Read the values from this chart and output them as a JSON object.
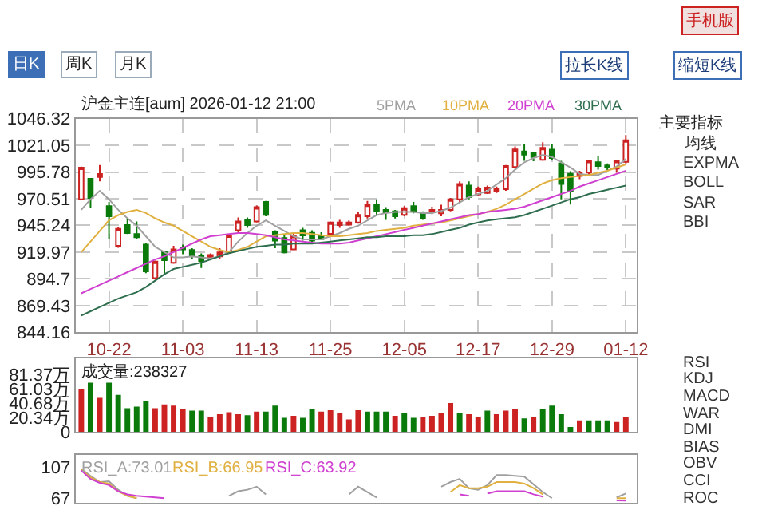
{
  "chart_data": [
    {
      "type": "candlestick",
      "title": "沪金主连[aum] 2026-01-12 21:00",
      "categories": [
        null,
        null,
        null,
        "10-22",
        null,
        null,
        null,
        null,
        null,
        null,
        null,
        "11-03",
        null,
        null,
        null,
        null,
        null,
        null,
        null,
        "11-13",
        null,
        null,
        null,
        null,
        null,
        null,
        null,
        "11-25",
        null,
        null,
        null,
        null,
        null,
        null,
        null,
        "12-05",
        null,
        null,
        null,
        null,
        null,
        null,
        null,
        "12-17",
        null,
        null,
        null,
        null,
        null,
        null,
        null,
        "12-29",
        null,
        null,
        null,
        null,
        null,
        null,
        null,
        "01-12"
      ],
      "ohlc": [
        [
          970,
          1001,
          969,
          1000
        ],
        [
          989.3,
          990,
          961.6,
          971.3
        ],
        [
          991,
          1002.5,
          987,
          994
        ],
        [
          963.5,
          967.4,
          932,
          953.8
        ],
        [
          926,
          944,
          924,
          942
        ],
        [
          945.5,
          951.8,
          937,
          938
        ],
        [
          937,
          948.9,
          932,
          934
        ],
        [
          927,
          928.4,
          900,
          901.7
        ],
        [
          895.3,
          912,
          894,
          911
        ],
        [
          920,
          920,
          899.2,
          912.4
        ],
        [
          909.9,
          926,
          909,
          922.6
        ],
        [
          924,
          927,
          918,
          922.5
        ],
        [
          922,
          923.6,
          913.8,
          916.3
        ],
        [
          916.3,
          918.7,
          905,
          911.4
        ],
        [
          915.3,
          918.7,
          913.8,
          917.3
        ],
        [
          916,
          923.6,
          913.8,
          919.7
        ],
        [
          919.7,
          937.2,
          918.7,
          935.8
        ],
        [
          940.6,
          952.8,
          937.2,
          948.9
        ],
        [
          950.4,
          952.8,
          943,
          945.5
        ],
        [
          948.9,
          964,
          948,
          962.6
        ],
        [
          967.4,
          968.4,
          953.8,
          955.2
        ],
        [
          939.2,
          940.6,
          923.6,
          930.9
        ],
        [
          933.3,
          935.8,
          918.7,
          919.7
        ],
        [
          922.6,
          937.2,
          922,
          935.3
        ],
        [
          940.6,
          943,
          930.9,
          935.8
        ],
        [
          938.2,
          940.6,
          929.4,
          930.9
        ],
        [
          935.3,
          938.7,
          932.3,
          932.3
        ],
        [
          937.2,
          949,
          935.8,
          948
        ],
        [
          945.5,
          950.4,
          943,
          948
        ],
        [
          946,
          950,
          945,
          948
        ],
        [
          948,
          957.6,
          946.9,
          955.2
        ],
        [
          953.8,
          968.4,
          951.8,
          965
        ],
        [
          965,
          970,
          955,
          958.6
        ],
        [
          960,
          962.6,
          950.4,
          957.6
        ],
        [
          958.6,
          960,
          951.8,
          953.8
        ],
        [
          955.2,
          963.5,
          953.8,
          961.6
        ],
        [
          963.5,
          967.4,
          956.7,
          958.6
        ],
        [
          957.6,
          958.6,
          950.4,
          951.8
        ],
        [
          957.6,
          963,
          956,
          960
        ],
        [
          956.7,
          964.9,
          953.8,
          960
        ],
        [
          960,
          971.3,
          958.6,
          969.9
        ],
        [
          969.9,
          986.9,
          967.4,
          984.5
        ],
        [
          983,
          986.9,
          969.9,
          972.3
        ],
        [
          974.7,
          982,
          973.3,
          979.6
        ],
        [
          976,
          983,
          975,
          981
        ],
        [
          978,
          982,
          976,
          979.6
        ],
        [
          979.6,
          1002.5,
          978,
          1001.5
        ],
        [
          1000.5,
          1020,
          999,
          1017.1
        ],
        [
          1015.2,
          1022,
          1006.4,
          1012.2
        ],
        [
          1014,
          1015,
          1006,
          1010
        ],
        [
          1007.4,
          1024,
          1006.4,
          1018.6
        ],
        [
          1017,
          1022,
          1007,
          1009
        ],
        [
          1004,
          1006.4,
          969.9,
          984.5
        ],
        [
          994.2,
          996.6,
          965,
          978.1
        ],
        [
          992,
          997,
          989,
          994.7
        ],
        [
          995.2,
          1007.4,
          992.2,
          1006.4
        ],
        [
          1005,
          1011.3,
          998,
          1001.5
        ],
        [
          1002,
          1004,
          997.6,
          1000.5
        ],
        [
          999.1,
          1007.4,
          995,
          1006.4
        ],
        [
          1005.4,
          1030.8,
          1004,
          1025.9
        ]
      ],
      "series": [
        {
          "type": "line",
          "name": "5PMA",
          "color": "#a0a0a0",
          "values": [
            960,
            970,
            978,
            970,
            960,
            952,
            945,
            935,
            925,
            920,
            915,
            915,
            916,
            915,
            914,
            916,
            920,
            930,
            938,
            945,
            950,
            945,
            940,
            935,
            932,
            932,
            932,
            935,
            938,
            942,
            945,
            950,
            955,
            957,
            958,
            958,
            958,
            957,
            957,
            959,
            962,
            967,
            972,
            975,
            978,
            984,
            990,
            998,
            1005,
            1009,
            1012,
            1010,
            1005,
            1000,
            994,
            993,
            993,
            997,
            1001,
            1008
          ]
        },
        {
          "type": "line",
          "name": "10PMA",
          "color": "#e0b040",
          "values": [
            920,
            930,
            940,
            950,
            955,
            958,
            960,
            957,
            952,
            948,
            945,
            940,
            935,
            930,
            925,
            922,
            920,
            922,
            925,
            930,
            935,
            936,
            937,
            938,
            938,
            937,
            936,
            935,
            935,
            936,
            937,
            938,
            940,
            941,
            942,
            943,
            945,
            946,
            947,
            948,
            950,
            952,
            954,
            956,
            958,
            961,
            965,
            970,
            975,
            980,
            985,
            988,
            990,
            991,
            992,
            993,
            995,
            997,
            1000,
            1003
          ]
        },
        {
          "type": "line",
          "name": "20PMA",
          "color": "#d040d0",
          "values": [
            881,
            885,
            889,
            893,
            897,
            901,
            905,
            909,
            913,
            916,
            920,
            924,
            928,
            932,
            935,
            936,
            937,
            938,
            938,
            937,
            936,
            934,
            932,
            931,
            930,
            929,
            928,
            928,
            928,
            929,
            931,
            933,
            935,
            937,
            939,
            941,
            943,
            945,
            947,
            949,
            951,
            953,
            955,
            956,
            958,
            959,
            960,
            961,
            963,
            966,
            969,
            972,
            975,
            978,
            982,
            985,
            988,
            991,
            994,
            997
          ]
        },
        {
          "type": "line",
          "name": "30PMA",
          "color": "#2e6e4e",
          "values": [
            860,
            864,
            868,
            872,
            876,
            879,
            882,
            887,
            893,
            899,
            904,
            906,
            908,
            910,
            913,
            916,
            919,
            921,
            923,
            925,
            926,
            927,
            927,
            928,
            928,
            928,
            929,
            930,
            931,
            932,
            933,
            934,
            934,
            935,
            935,
            935,
            936,
            936,
            937,
            939,
            941,
            943,
            946,
            948,
            950,
            951,
            952,
            953,
            955,
            958,
            961,
            964,
            967,
            970,
            972,
            975,
            977,
            979,
            981,
            983
          ]
        }
      ],
      "ylim": [
        844.16,
        1046.32
      ],
      "yticks": [
        844.16,
        869.43,
        894.7,
        919.97,
        945.24,
        970.51,
        995.78,
        1021.05,
        1046.32
      ],
      "grid": true,
      "marker": "none"
    },
    {
      "type": "bar",
      "title": "成交量:238327",
      "categories": [
        null,
        null,
        null,
        null,
        null,
        null,
        null,
        null,
        null,
        null,
        null,
        null,
        null,
        null,
        null,
        null,
        null,
        null,
        null,
        null,
        null,
        null,
        null,
        null,
        null,
        null,
        null,
        null,
        null,
        null,
        null,
        null,
        null,
        null,
        null,
        null,
        null,
        null,
        null,
        null,
        null,
        null,
        null,
        null,
        null,
        null,
        null,
        null,
        null,
        null,
        null,
        null,
        null,
        null,
        null,
        null,
        null,
        null,
        null,
        null
      ],
      "values": [
        61.2,
        69.8,
        48.2,
        69.8,
        52.6,
        33.8,
        36,
        43.9,
        33.8,
        38.9,
        37.4,
        32.4,
        30.2,
        30.2,
        21.6,
        25.2,
        28,
        25.2,
        23.8,
        28.8,
        28.8,
        37.4,
        20.2,
        23,
        20.2,
        32.4,
        28.8,
        31,
        26.6,
        18,
        31,
        28.8,
        28.8,
        28.8,
        23,
        26.6,
        20.2,
        21.6,
        23,
        26.6,
        41,
        26.6,
        25.2,
        21.6,
        30.2,
        25.2,
        30.2,
        32.4,
        19.4,
        21.6,
        32.4,
        37.4,
        25.2,
        7.2,
        16.6,
        16.6,
        16.6,
        16.6,
        14.4,
        21.6
      ],
      "colors": [
        "#cc2222",
        "#0a7a0a",
        "#cc2222",
        "#0a7a0a",
        "#0a7a0a",
        "#0a7a0a",
        "#0a7a0a",
        "#0a7a0a",
        "#cc2222",
        "#cc2222",
        "#cc2222",
        "#cc2222",
        "#0a7a0a",
        "#0a7a0a",
        "#cc2222",
        "#cc2222",
        "#cc2222",
        "#cc2222",
        "#0a7a0a",
        "#cc2222",
        "#0a7a0a",
        "#0a7a0a",
        "#0a7a0a",
        "#cc2222",
        "#0a7a0a",
        "#0a7a0a",
        "#cc2222",
        "#cc2222",
        "#cc2222",
        "#cc2222",
        "#cc2222",
        "#0a7a0a",
        "#0a7a0a",
        "#0a7a0a",
        "#cc2222",
        "#0a7a0a",
        "#0a7a0a",
        "#cc2222",
        "#cc2222",
        "#cc2222",
        "#cc2222",
        "#0a7a0a",
        "#cc2222",
        "#cc2222",
        "#0a7a0a",
        "#cc2222",
        "#cc2222",
        "#cc2222",
        "#0a7a0a",
        "#cc2222",
        "#0a7a0a",
        "#0a7a0a",
        "#0a7a0a",
        "#0a7a0a",
        "#cc2222",
        "#0a7a0a",
        "#0a7a0a",
        "#0a7a0a",
        "#cc2222",
        "#cc2222"
      ],
      "ylim": [
        0,
        104
      ],
      "yticks": [
        0,
        {
          "value": 20.34,
          "label": "20.34万"
        },
        {
          "value": 40.68,
          "label": "40.68万"
        },
        {
          "value": 61.03,
          "label": "61.03万"
        },
        {
          "value": 81.37,
          "label": "81.37万"
        }
      ],
      "grid": "x",
      "tick_labels": "y"
    },
    {
      "type": "line",
      "categories": [
        null,
        null,
        null,
        null,
        null,
        null,
        null,
        null,
        null,
        null,
        null,
        null,
        null,
        null,
        null,
        null,
        null,
        null,
        null,
        null,
        null,
        null,
        null,
        null,
        null,
        null,
        null,
        null,
        null,
        null,
        null,
        null,
        null,
        null,
        null,
        null,
        null,
        null,
        null,
        null,
        null,
        null,
        null,
        null,
        null,
        null,
        null,
        null,
        null,
        null,
        null,
        null,
        null,
        null,
        null,
        null,
        null,
        null,
        null,
        null
      ],
      "series": [
        {
          "name": "RSI_A:73.01",
          "color": "#a0a0a0",
          "values": [
            105,
            96,
            88,
            89,
            78,
            70,
            67,
            null,
            null,
            null,
            null,
            null,
            null,
            null,
            null,
            null,
            70,
            76,
            78,
            82,
            72,
            null,
            null,
            null,
            null,
            null,
            null,
            null,
            null,
            72,
            82,
            75,
            68,
            null,
            null,
            null,
            null,
            null,
            null,
            82,
            88,
            92,
            80,
            78,
            84,
            97,
            97,
            96,
            95,
            85,
            75,
            67,
            null,
            null,
            null,
            null,
            null,
            null,
            68,
            73.01
          ]
        },
        {
          "name": "RSI_B:66.95",
          "color": "#e0b040",
          "values": [
            104,
            94,
            88,
            86,
            76,
            70,
            67,
            null,
            null,
            null,
            null,
            null,
            null,
            null,
            null,
            null,
            null,
            null,
            null,
            null,
            null,
            null,
            null,
            null,
            null,
            null,
            null,
            null,
            null,
            null,
            null,
            null,
            null,
            null,
            null,
            null,
            null,
            null,
            null,
            null,
            75,
            84,
            80,
            80,
            82,
            88,
            88,
            88,
            86,
            80,
            72,
            null,
            null,
            null,
            null,
            null,
            null,
            null,
            67,
            66.95
          ]
        },
        {
          "name": "RSI_C:63.92",
          "color": "#d040d0",
          "values": [
            103,
            92,
            87,
            84,
            76,
            72,
            70,
            69,
            68,
            67,
            null,
            null,
            null,
            null,
            null,
            null,
            null,
            null,
            null,
            null,
            null,
            null,
            null,
            null,
            null,
            null,
            null,
            null,
            null,
            null,
            null,
            null,
            null,
            null,
            null,
            null,
            null,
            null,
            null,
            null,
            null,
            72,
            70,
            null,
            73,
            76,
            76,
            76,
            76,
            72,
            69,
            null,
            null,
            null,
            null,
            null,
            null,
            null,
            64,
            63.92
          ]
        }
      ],
      "ylim": [
        61,
        123
      ],
      "yticks": [
        67,
        107
      ],
      "grid": "x",
      "tick_labels": "y",
      "marker": "none"
    },
    {
      "type": "other",
      "annotations": [
        "手机版",
        "日K",
        "周K",
        "月K",
        "拉长K线",
        "缩短K线",
        "主要指标",
        "均线",
        "EXPMA",
        "BOLL",
        "SAR",
        "BBI",
        "RSI",
        "KDJ",
        "MACD",
        "WAR",
        "DMI",
        "BIAS",
        "OBV",
        "CCI",
        "ROC"
      ]
    }
  ]
}
